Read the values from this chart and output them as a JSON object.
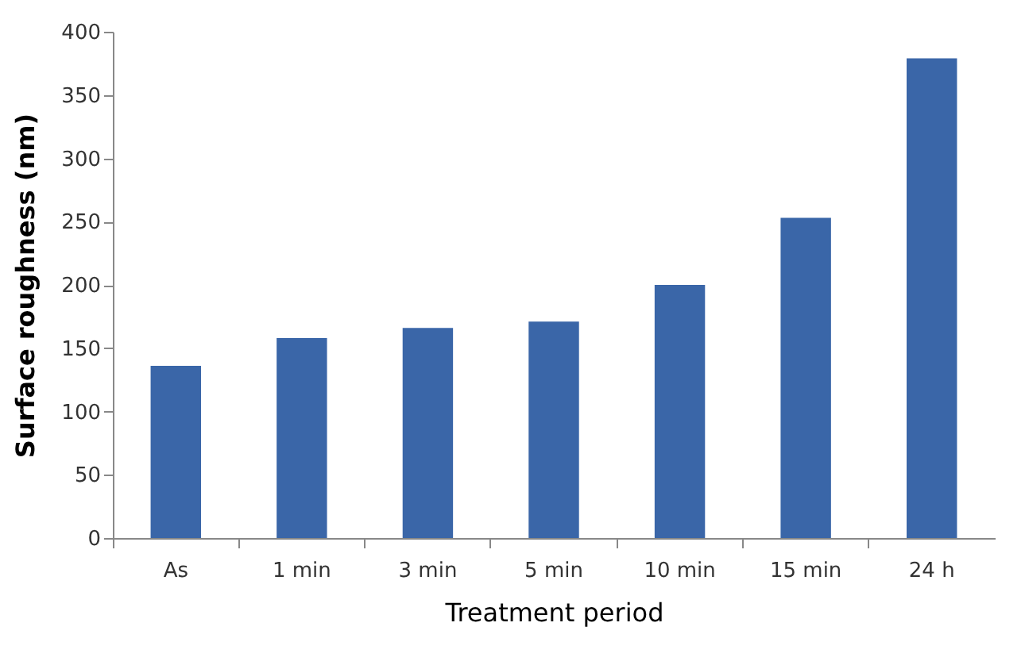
{
  "chart_data": {
    "type": "bar",
    "xlabel": "Treatment period",
    "ylabel": "Surface roughness (nm)",
    "categories": [
      "As",
      "1 min",
      "3 min",
      "5 min",
      "10 min",
      "15 min",
      "24 h"
    ],
    "values": [
      136,
      158,
      166,
      171,
      200,
      253,
      379
    ],
    "color": "#3a66a8",
    "ylim": [
      0,
      400
    ],
    "yticks": [
      0,
      50,
      100,
      150,
      200,
      250,
      300,
      350,
      400
    ],
    "grid": false
  }
}
